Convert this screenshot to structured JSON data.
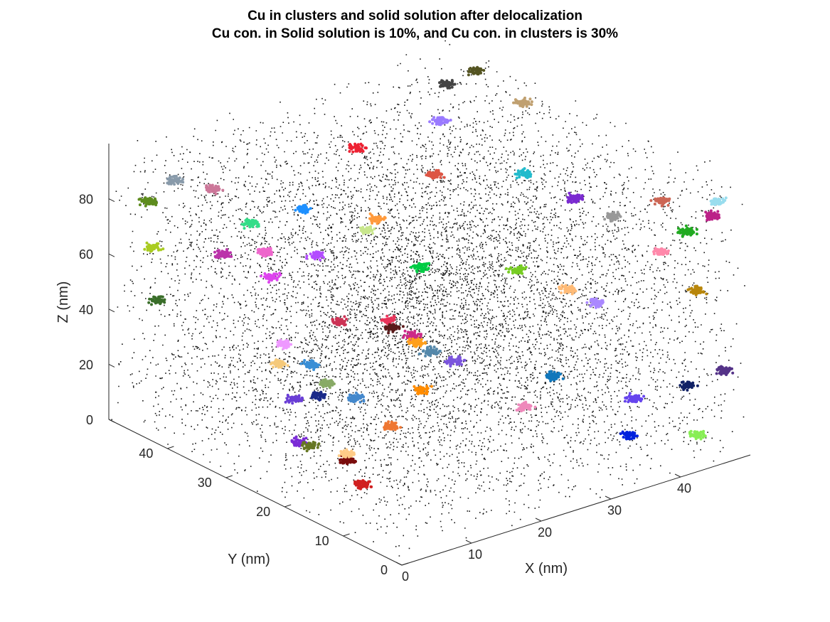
{
  "chart_data": {
    "type": "scatter",
    "title": "Cu in clusters and solid solution after delocalization",
    "subtitle": "Cu con. in Solid solution is 10%, and Cu con. in clusters is 30%",
    "xlabel": "X (nm)",
    "ylabel": "Y (nm)",
    "zlabel": "Z (nm)",
    "xlim": [
      0,
      50
    ],
    "ylim": [
      0,
      50
    ],
    "zlim": [
      0,
      100
    ],
    "xticks": [
      0,
      10,
      20,
      30,
      40
    ],
    "yticks": [
      0,
      10,
      20,
      30,
      40
    ],
    "zticks": [
      0,
      20,
      40,
      60,
      80
    ],
    "view": "3d",
    "grid": false,
    "background_points_color": "#000000",
    "clusters": [
      {
        "x": 3,
        "y": 6,
        "z": 80,
        "color": "#e8345a"
      },
      {
        "x": 2,
        "y": 9,
        "z": 18,
        "color": "#d02020"
      },
      {
        "x": 4,
        "y": 14,
        "z": 20,
        "color": "#7a0c0c"
      },
      {
        "x": 2,
        "y": 20,
        "z": 22,
        "color": "#7b2bd6"
      },
      {
        "x": 7,
        "y": 10,
        "z": 70,
        "color": "#5a1a1a"
      },
      {
        "x": 7,
        "y": 16,
        "z": 38,
        "color": "#4488cc"
      },
      {
        "x": 6,
        "y": 20,
        "z": 40,
        "color": "#88aa66"
      },
      {
        "x": 8,
        "y": 25,
        "z": 40,
        "color": "#3a8fd6"
      },
      {
        "x": 9,
        "y": 20,
        "z": 12,
        "color": "#ffcc88"
      },
      {
        "x": 10,
        "y": 26,
        "z": 26,
        "color": "#1a2a88"
      },
      {
        "x": 12,
        "y": 30,
        "z": 2,
        "color": "#667722"
      },
      {
        "x": 14,
        "y": 35,
        "z": 12,
        "color": "#6a3ed6"
      },
      {
        "x": 12,
        "y": 16,
        "z": 24,
        "color": "#ee7733"
      },
      {
        "x": 18,
        "y": 18,
        "z": 30,
        "color": "#ff8c00"
      },
      {
        "x": 16,
        "y": 14,
        "z": 50,
        "color": "#5588aa"
      },
      {
        "x": 20,
        "y": 22,
        "z": 44,
        "color": "#cc2a88"
      },
      {
        "x": 24,
        "y": 26,
        "z": 34,
        "color": "#ff9f1c"
      },
      {
        "x": 26,
        "y": 22,
        "z": 30,
        "color": "#7b55dd"
      },
      {
        "x": 18,
        "y": 32,
        "z": 40,
        "color": "#cc3355"
      },
      {
        "x": 15,
        "y": 38,
        "z": 28,
        "color": "#ee99ff"
      },
      {
        "x": 16,
        "y": 40,
        "z": 18,
        "color": "#f5c97a"
      },
      {
        "x": 28,
        "y": 30,
        "z": 54,
        "color": "#00cc44"
      },
      {
        "x": 22,
        "y": 32,
        "z": 70,
        "color": "#c8e68c"
      },
      {
        "x": 30,
        "y": 16,
        "z": 66,
        "color": "#77cc22"
      },
      {
        "x": 34,
        "y": 12,
        "z": 60,
        "color": "#ffbb77"
      },
      {
        "x": 38,
        "y": 12,
        "z": 52,
        "color": "#aa88ff"
      },
      {
        "x": 30,
        "y": 10,
        "z": 34,
        "color": "#1177bb"
      },
      {
        "x": 40,
        "y": 8,
        "z": 20,
        "color": "#6644ee"
      },
      {
        "x": 36,
        "y": 22,
        "z": 90,
        "color": "#22bbcc"
      },
      {
        "x": 30,
        "y": 30,
        "z": 86,
        "color": "#dd5544"
      },
      {
        "x": 40,
        "y": 18,
        "z": 82,
        "color": "#7a2ad0"
      },
      {
        "x": 42,
        "y": 14,
        "z": 78,
        "color": "#999999"
      },
      {
        "x": 44,
        "y": 8,
        "z": 70,
        "color": "#ff88aa"
      },
      {
        "x": 46,
        "y": 6,
        "z": 78,
        "color": "#22aa22"
      },
      {
        "x": 48,
        "y": 4,
        "z": 84,
        "color": "#bb2288"
      },
      {
        "x": 47,
        "y": 2,
        "z": 92,
        "color": "#99ddee"
      },
      {
        "x": 46,
        "y": 34,
        "z": 95,
        "color": "#c0a070"
      },
      {
        "x": 49,
        "y": 14,
        "z": 78,
        "color": "#cc6655"
      },
      {
        "x": 49,
        "y": 8,
        "z": 52,
        "color": "#b8860b"
      },
      {
        "x": 10,
        "y": 44,
        "z": 82,
        "color": "#cc7799"
      },
      {
        "x": 6,
        "y": 46,
        "z": 86,
        "color": "#889aaa"
      },
      {
        "x": 4,
        "y": 48,
        "z": 78,
        "color": "#5e8c1e"
      },
      {
        "x": 3,
        "y": 46,
        "z": 64,
        "color": "#aacc22"
      },
      {
        "x": 2,
        "y": 44,
        "z": 48,
        "color": "#3a6e2a"
      },
      {
        "x": 12,
        "y": 40,
        "z": 72,
        "color": "#33dd88"
      },
      {
        "x": 8,
        "y": 40,
        "z": 64,
        "color": "#bb33aa"
      },
      {
        "x": 16,
        "y": 36,
        "z": 78,
        "color": "#1e90ff"
      },
      {
        "x": 20,
        "y": 28,
        "z": 80,
        "color": "#ff9a3c"
      },
      {
        "x": 24,
        "y": 36,
        "z": 94,
        "color": "#ee2233"
      },
      {
        "x": 14,
        "y": 40,
        "z": 60,
        "color": "#ee66cc"
      },
      {
        "x": 18,
        "y": 36,
        "z": 60,
        "color": "#b34dff"
      },
      {
        "x": 34,
        "y": 34,
        "z": 98,
        "color": "#9a7aff"
      },
      {
        "x": 20,
        "y": 46,
        "z": 40,
        "color": "#dd44ee"
      },
      {
        "x": 40,
        "y": 40,
        "z": 100,
        "color": "#444444"
      },
      {
        "x": 46,
        "y": 42,
        "z": 98,
        "color": "#555522"
      },
      {
        "x": 26,
        "y": 10,
        "z": 26,
        "color": "#ee88bb"
      },
      {
        "x": 36,
        "y": 4,
        "z": 14,
        "color": "#0022dd"
      },
      {
        "x": 44,
        "y": 2,
        "z": 10,
        "color": "#88ee55"
      },
      {
        "x": 46,
        "y": 6,
        "z": 22,
        "color": "#112266"
      },
      {
        "x": 48,
        "y": 2,
        "z": 30,
        "color": "#553388"
      }
    ]
  }
}
